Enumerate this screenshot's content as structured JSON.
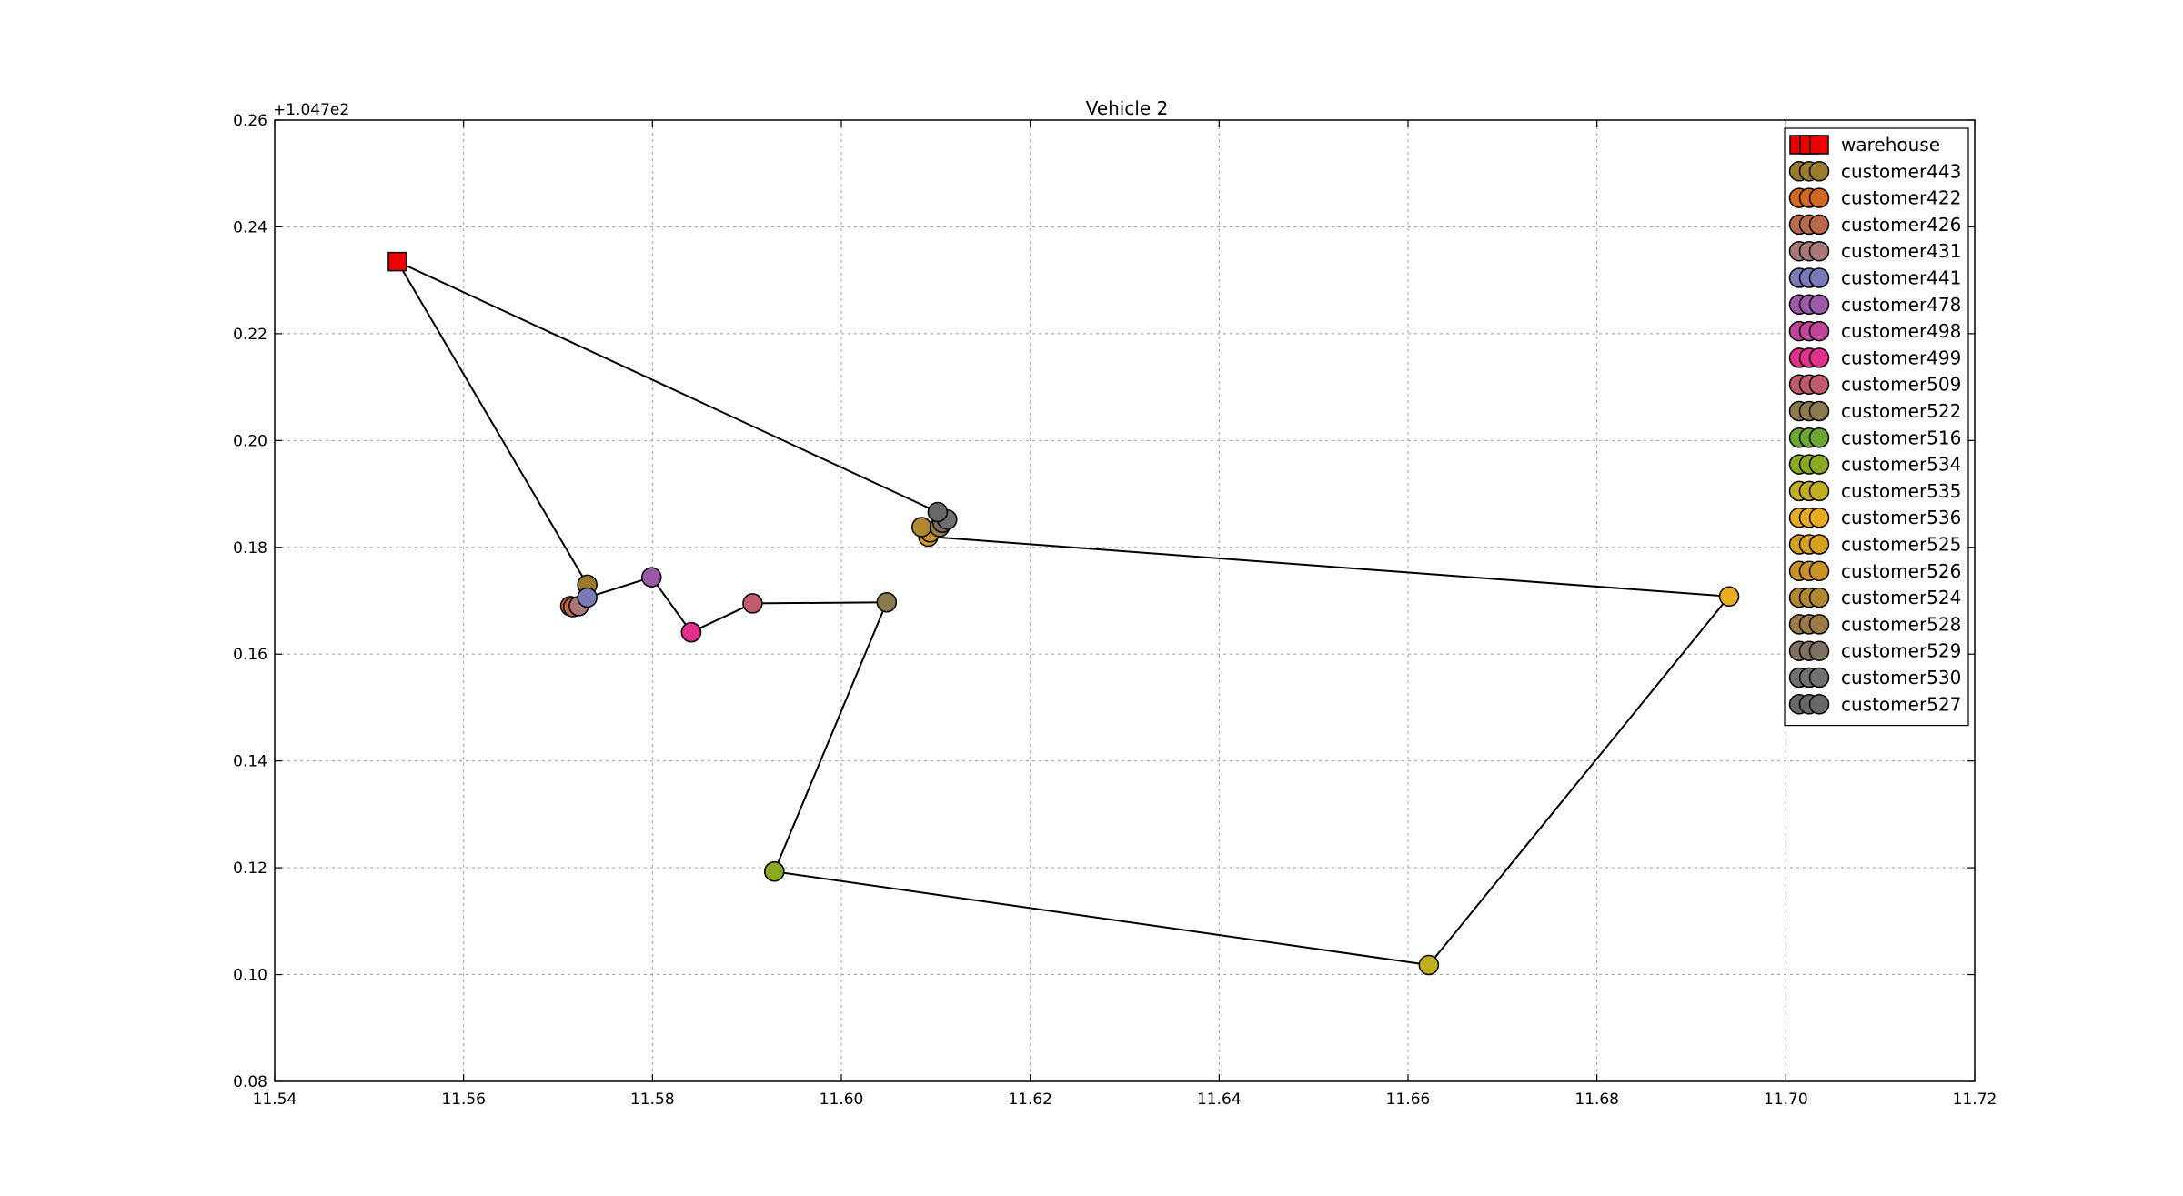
{
  "chart_data": {
    "type": "scatter",
    "title": "Vehicle 2",
    "xlabel": "",
    "ylabel": "",
    "xlim": [
      11.54,
      11.72
    ],
    "ylim": [
      0.08,
      0.26
    ],
    "x_ticks": [
      "11.54",
      "11.56",
      "11.58",
      "11.60",
      "11.62",
      "11.64",
      "11.66",
      "11.68",
      "11.70",
      "11.72"
    ],
    "y_ticks": [
      "0.08",
      "0.10",
      "0.12",
      "0.14",
      "0.16",
      "0.18",
      "0.20",
      "0.22",
      "0.24",
      "0.26"
    ],
    "y_offset_label": "+1.047e2",
    "grid": true,
    "legend_position": "top-right",
    "series": [
      {
        "name": "warehouse",
        "marker": "square",
        "color": "#ee0000",
        "x": 11.553,
        "y": 0.2335
      },
      {
        "name": "customer443",
        "marker": "circle",
        "color": "#9a7a2c",
        "x": 11.5731,
        "y": 0.173
      },
      {
        "name": "customer422",
        "marker": "circle",
        "color": "#d2691e",
        "x": 11.5713,
        "y": 0.169
      },
      {
        "name": "customer426",
        "marker": "circle",
        "color": "#b96a4c",
        "x": 11.5716,
        "y": 0.1688
      },
      {
        "name": "customer431",
        "marker": "circle",
        "color": "#a87878",
        "x": 11.5722,
        "y": 0.169
      },
      {
        "name": "customer441",
        "marker": "circle",
        "color": "#7a7ab8",
        "x": 11.5731,
        "y": 0.1706
      },
      {
        "name": "customer478",
        "marker": "circle",
        "color": "#9b59a8",
        "x": 11.5799,
        "y": 0.1744
      },
      {
        "name": "customer498",
        "marker": "circle",
        "color": "#c0449a",
        "x": 11.5841,
        "y": 0.1641
      },
      {
        "name": "customer499",
        "marker": "circle",
        "color": "#e0308c",
        "x": 11.5841,
        "y": 0.1641
      },
      {
        "name": "customer509",
        "marker": "circle",
        "color": "#c05a6c",
        "x": 11.5906,
        "y": 0.1695
      },
      {
        "name": "customer522",
        "marker": "circle",
        "color": "#8a7a4e",
        "x": 11.6048,
        "y": 0.1697
      },
      {
        "name": "customer516",
        "marker": "circle",
        "color": "#6aa832",
        "x": 11.5929,
        "y": 0.1193
      },
      {
        "name": "customer534",
        "marker": "circle",
        "color": "#8aa820",
        "x": 11.5929,
        "y": 0.1193
      },
      {
        "name": "customer535",
        "marker": "circle",
        "color": "#c0b020",
        "x": 11.6622,
        "y": 0.1018
      },
      {
        "name": "customer536",
        "marker": "circle",
        "color": "#e8ac20",
        "x": 11.694,
        "y": 0.1708
      },
      {
        "name": "customer525",
        "marker": "circle",
        "color": "#d4a020",
        "x": 11.6092,
        "y": 0.182
      },
      {
        "name": "customer526",
        "marker": "circle",
        "color": "#c89228",
        "x": 11.6094,
        "y": 0.1828
      },
      {
        "name": "customer524",
        "marker": "circle",
        "color": "#b08830",
        "x": 11.6085,
        "y": 0.1838
      },
      {
        "name": "customer528",
        "marker": "circle",
        "color": "#9c7c44",
        "x": 11.6104,
        "y": 0.1838
      },
      {
        "name": "customer529",
        "marker": "circle",
        "color": "#7e7060",
        "x": 11.6107,
        "y": 0.1846
      },
      {
        "name": "customer530",
        "marker": "circle",
        "color": "#707070",
        "x": 11.6112,
        "y": 0.1852
      },
      {
        "name": "customer527",
        "marker": "circle",
        "color": "#686868",
        "x": 11.6102,
        "y": 0.1866
      }
    ],
    "route": [
      [
        11.553,
        0.2335
      ],
      [
        11.5731,
        0.173
      ],
      [
        11.5713,
        0.169
      ],
      [
        11.5731,
        0.1706
      ],
      [
        11.5799,
        0.1744
      ],
      [
        11.5841,
        0.1641
      ],
      [
        11.5906,
        0.1695
      ],
      [
        11.6048,
        0.1697
      ],
      [
        11.5929,
        0.1193
      ],
      [
        11.6622,
        0.1018
      ],
      [
        11.694,
        0.1708
      ],
      [
        11.6092,
        0.182
      ],
      [
        11.6094,
        0.1828
      ],
      [
        11.6085,
        0.1838
      ],
      [
        11.6104,
        0.1838
      ],
      [
        11.6107,
        0.1846
      ],
      [
        11.6112,
        0.1852
      ],
      [
        11.6102,
        0.1866
      ],
      [
        11.553,
        0.2335
      ]
    ]
  }
}
